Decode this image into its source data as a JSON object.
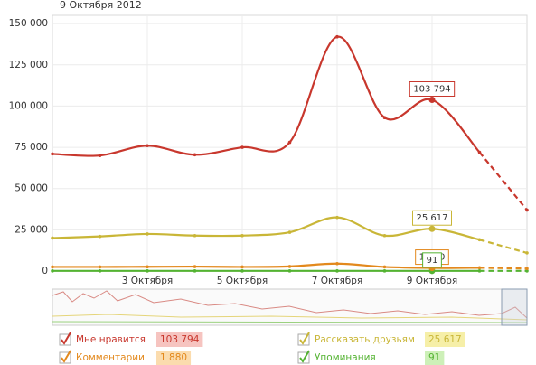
{
  "chart_data": {
    "type": "line",
    "title": "9 Октября 2012",
    "categories": [
      null,
      null,
      "3 Октября",
      null,
      "5 Октября",
      null,
      "7 Октября",
      null,
      "9 Октября",
      null,
      null
    ],
    "forecast_from_index": 9,
    "highlight_index": 8,
    "ylim": [
      0,
      155000
    ],
    "yticks": [
      0,
      {
        "value": 25000,
        "label": "25 000"
      },
      {
        "value": 50000,
        "label": "50 000"
      },
      {
        "value": 75000,
        "label": "75 000"
      },
      {
        "value": 100000,
        "label": "100 000"
      },
      {
        "value": 125000,
        "label": "125 000"
      },
      {
        "value": 150000,
        "label": "150 000"
      }
    ],
    "grid": true,
    "series": [
      {
        "name": "Мне нравится",
        "color": "#c8372d",
        "legend_bg": "#f6c4c0",
        "values": [
          71000,
          70000,
          76000,
          70500,
          75000,
          78000,
          142000,
          93000,
          103794,
          72000,
          37000
        ],
        "value_labels": [
          null,
          null,
          null,
          null,
          null,
          null,
          null,
          null,
          "103 794",
          null,
          null
        ]
      },
      {
        "name": "Комментарии",
        "color": "#e3891d",
        "legend_bg": "#fbdcae",
        "values": [
          2500,
          2500,
          2600,
          2700,
          2500,
          2800,
          4500,
          2500,
          1880,
          2000,
          1500
        ],
        "value_labels": [
          null,
          null,
          null,
          null,
          null,
          null,
          null,
          null,
          "1 880",
          null,
          null
        ]
      },
      {
        "name": "Рассказать друзьям",
        "color": "#c9b637",
        "legend_bg": "#f6efa8",
        "values": [
          20000,
          21000,
          22500,
          21500,
          21500,
          23500,
          32500,
          21500,
          25617,
          19000,
          11000
        ],
        "value_labels": [
          null,
          null,
          null,
          null,
          null,
          null,
          null,
          null,
          "25 617",
          null,
          null
        ]
      },
      {
        "name": "Упоминания",
        "color": "#54b332",
        "legend_bg": "#cdf0b8",
        "values": [
          100,
          100,
          100,
          100,
          100,
          100,
          100,
          100,
          91,
          100,
          100
        ],
        "value_labels": [
          null,
          null,
          null,
          null,
          null,
          null,
          null,
          null,
          "91",
          null,
          null
        ]
      }
    ]
  }
}
